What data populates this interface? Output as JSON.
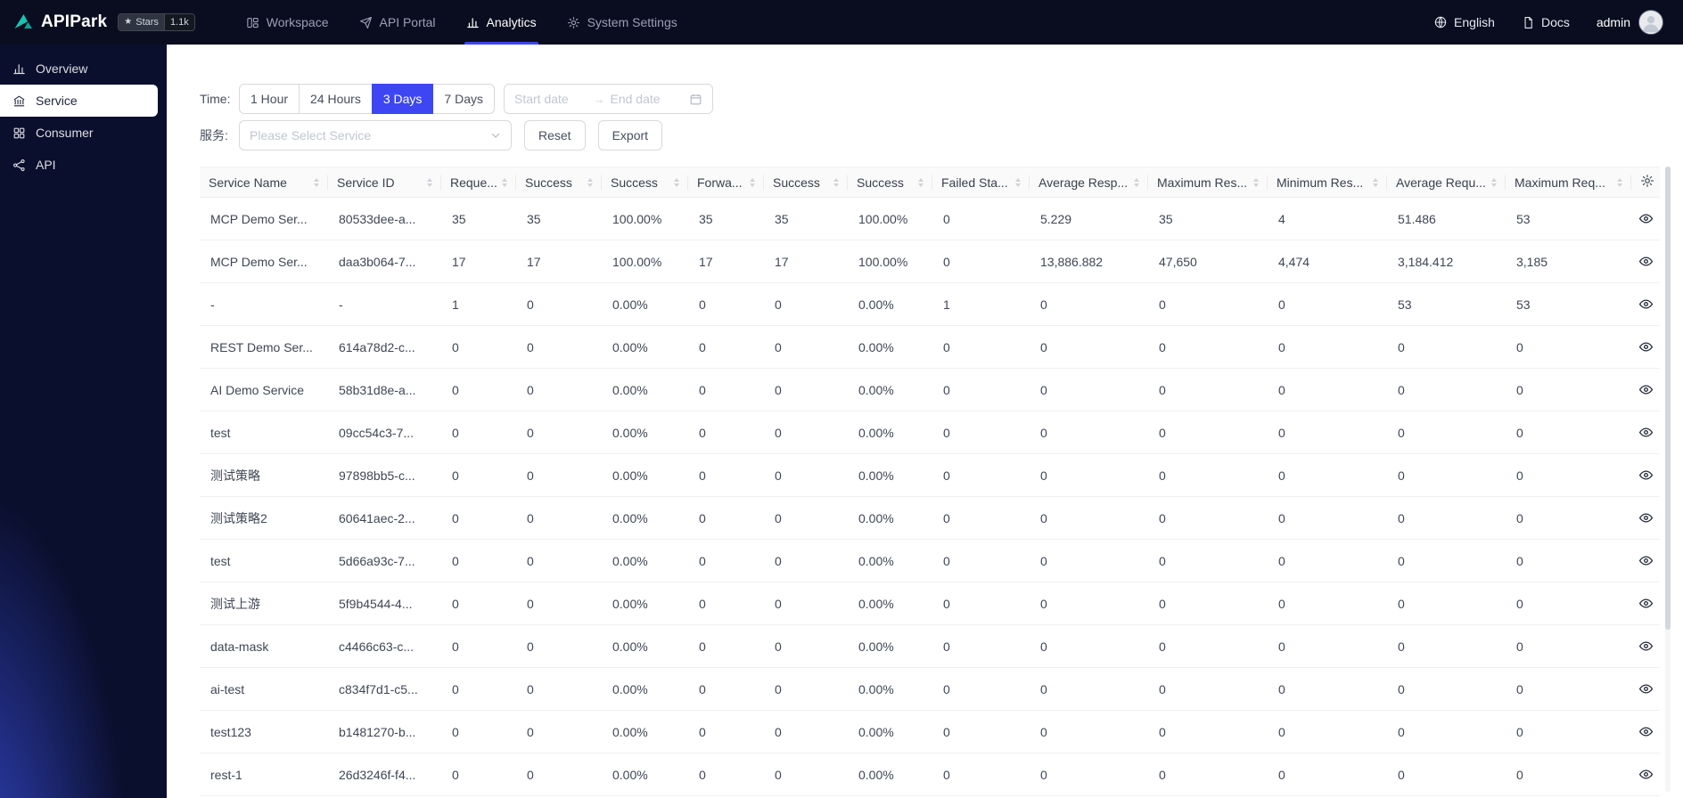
{
  "colors": {
    "accent": "#3d46f2"
  },
  "icons": {
    "star": "★",
    "range_arrow": "→"
  },
  "navbar": {
    "logo_text": "APIPark",
    "stars_badge": {
      "label": "Stars",
      "count": "1.1k"
    },
    "items": [
      {
        "label": "Workspace"
      },
      {
        "label": "API Portal"
      },
      {
        "label": "Analytics"
      },
      {
        "label": "System Settings"
      }
    ],
    "language": "English",
    "docs": "Docs",
    "username": "admin"
  },
  "sidebar": {
    "items": [
      {
        "label": "Overview"
      },
      {
        "label": "Service"
      },
      {
        "label": "Consumer"
      },
      {
        "label": "API"
      }
    ]
  },
  "filters": {
    "time_label": "Time:",
    "time_options": [
      "1 Hour",
      "24 Hours",
      "3 Days",
      "7 Days"
    ],
    "time_selected": "3 Days",
    "start_date_placeholder": "Start date",
    "end_date_placeholder": "End date",
    "service_label": "服务:",
    "service_placeholder": "Please Select Service",
    "reset_label": "Reset",
    "export_label": "Export"
  },
  "table": {
    "columns": [
      "Service Name",
      "Service ID",
      "Reque...",
      "Success",
      "Success",
      "Forwa...",
      "Success",
      "Success",
      "Failed Sta...",
      "Average Resp...",
      "Maximum Res...",
      "Minimum Res...",
      "Average Requ...",
      "Maximum Req..."
    ],
    "rows": [
      [
        "MCP Demo Ser...",
        "80533dee-a...",
        "35",
        "35",
        "100.00%",
        "35",
        "35",
        "100.00%",
        "0",
        "5.229",
        "35",
        "4",
        "51.486",
        "53"
      ],
      [
        "MCP Demo Ser...",
        "daa3b064-7...",
        "17",
        "17",
        "100.00%",
        "17",
        "17",
        "100.00%",
        "0",
        "13,886.882",
        "47,650",
        "4,474",
        "3,184.412",
        "3,185"
      ],
      [
        "-",
        "-",
        "1",
        "0",
        "0.00%",
        "0",
        "0",
        "0.00%",
        "1",
        "0",
        "0",
        "0",
        "53",
        "53"
      ],
      [
        "REST Demo Ser...",
        "614a78d2-c...",
        "0",
        "0",
        "0.00%",
        "0",
        "0",
        "0.00%",
        "0",
        "0",
        "0",
        "0",
        "0",
        "0"
      ],
      [
        "AI Demo Service",
        "58b31d8e-a...",
        "0",
        "0",
        "0.00%",
        "0",
        "0",
        "0.00%",
        "0",
        "0",
        "0",
        "0",
        "0",
        "0"
      ],
      [
        "test",
        "09cc54c3-7...",
        "0",
        "0",
        "0.00%",
        "0",
        "0",
        "0.00%",
        "0",
        "0",
        "0",
        "0",
        "0",
        "0"
      ],
      [
        "测试策略",
        "97898bb5-c...",
        "0",
        "0",
        "0.00%",
        "0",
        "0",
        "0.00%",
        "0",
        "0",
        "0",
        "0",
        "0",
        "0"
      ],
      [
        "测试策略2",
        "60641aec-2...",
        "0",
        "0",
        "0.00%",
        "0",
        "0",
        "0.00%",
        "0",
        "0",
        "0",
        "0",
        "0",
        "0"
      ],
      [
        "test",
        "5d66a93c-7...",
        "0",
        "0",
        "0.00%",
        "0",
        "0",
        "0.00%",
        "0",
        "0",
        "0",
        "0",
        "0",
        "0"
      ],
      [
        "测试上游",
        "5f9b4544-4...",
        "0",
        "0",
        "0.00%",
        "0",
        "0",
        "0.00%",
        "0",
        "0",
        "0",
        "0",
        "0",
        "0"
      ],
      [
        "data-mask",
        "c4466c63-c...",
        "0",
        "0",
        "0.00%",
        "0",
        "0",
        "0.00%",
        "0",
        "0",
        "0",
        "0",
        "0",
        "0"
      ],
      [
        "ai-test",
        "c834f7d1-c5...",
        "0",
        "0",
        "0.00%",
        "0",
        "0",
        "0.00%",
        "0",
        "0",
        "0",
        "0",
        "0",
        "0"
      ],
      [
        "test123",
        "b1481270-b...",
        "0",
        "0",
        "0.00%",
        "0",
        "0",
        "0.00%",
        "0",
        "0",
        "0",
        "0",
        "0",
        "0"
      ],
      [
        "rest-1",
        "26d3246f-f4...",
        "0",
        "0",
        "0.00%",
        "0",
        "0",
        "0.00%",
        "0",
        "0",
        "0",
        "0",
        "0",
        "0"
      ]
    ]
  }
}
